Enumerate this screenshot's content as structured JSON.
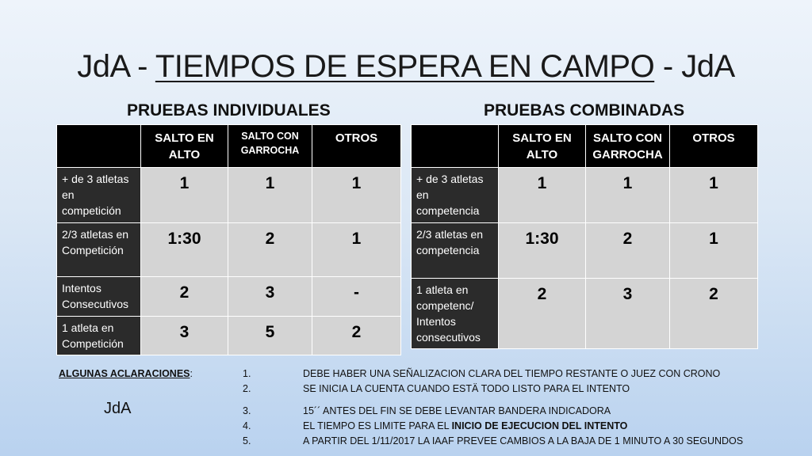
{
  "title": {
    "left": "JdA  - ",
    "middle": "TIEMPOS DE ESPERA EN CAMPO",
    "right": " - JdA"
  },
  "individual": {
    "heading": "PRUEBAS INDIVIDUALES",
    "columns": [
      "SALTO EN ALTO",
      "SALTO CON GARROCHA",
      "OTROS"
    ],
    "rows": [
      {
        "label": "+ de 3 atletas en competición",
        "values": [
          "1",
          "1",
          "1"
        ]
      },
      {
        "label": "2/3 atletas en Competición",
        "values": [
          "1:30",
          "2",
          "1"
        ]
      },
      {
        "label": "Intentos Consecutivos",
        "values": [
          "2",
          "3",
          "-"
        ]
      },
      {
        "label": "1 atleta en Competición",
        "values": [
          "3",
          "5",
          "2"
        ]
      }
    ]
  },
  "combined": {
    "heading": "PRUEBAS COMBINADAS",
    "columns": [
      "SALTO EN ALTO",
      "SALTO CON GARROCHA",
      "OTROS"
    ],
    "rows": [
      {
        "label": "+ de 3 atletas en competencia",
        "values": [
          "1",
          "1",
          "1"
        ]
      },
      {
        "label": "2/3 atletas en competencia",
        "values": [
          "1:30",
          "2",
          "1"
        ]
      },
      {
        "label": "1 atleta en competenc/ Intentos consecutivos",
        "values": [
          "2",
          "3",
          "2"
        ]
      }
    ]
  },
  "notes": {
    "heading": "ALGUNAS ACLARACIONES",
    "heading_suffix": ":",
    "items": [
      {
        "num": "1.",
        "text": "DEBE HABER UNA SEÑALIZACION CLARA DEL TIEMPO RESTANTE O JUEZ CON CRONO"
      },
      {
        "num": "2.",
        "text": "SE INICIA LA CUENTA CUANDO ESTÄ TODO LISTO PARA EL INTENTO"
      },
      {
        "num": "3.",
        "text": "15´´ ANTES DEL FIN SE DEBE LEVANTAR BANDERA INDICADORA"
      },
      {
        "num": "4.",
        "text_pre": "EL TIEMPO ES LIMITE PARA EL ",
        "text_bold": "INICIO DE EJECUCION DEL INTENTO"
      },
      {
        "num": "5.",
        "text": "A PARTIR DEL 1/11/2017 LA IAAF PREVEE CAMBIOS A LA BAJA DE 1 MINUTO A 30 SEGUNDOS"
      }
    ]
  },
  "footer_label": "JdA"
}
